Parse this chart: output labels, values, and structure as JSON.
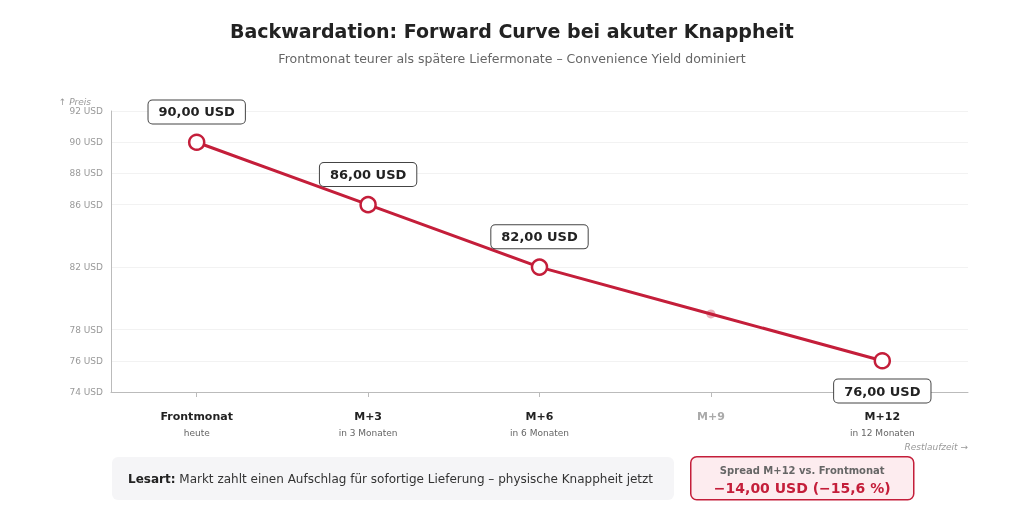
{
  "chart_data": {
    "type": "line",
    "title": "Backwardation: Forward Curve bei akuter Knappheit",
    "subtitle": "Frontmonat teurer als spätere Liefermonate – Convenience Yield dominiert",
    "xlabel": "Restlaufzeit →",
    "ylabel": "↑ Preis",
    "categories": [
      "Frontmonat\nheute",
      "M+3\nin 3 Monaten",
      "M+6\nin 6 Monaten",
      "M+9",
      "M+12\nin 12 Monaten"
    ],
    "series": [
      {
        "color": "#c41e3a",
        "values": [
          90,
          86,
          82,
          79,
          76
        ],
        "value_labels": [
          "90,00 USD",
          "86,00 USD",
          "82,00 USD",
          null,
          "76,00 USD"
        ]
      }
    ],
    "ylim": [
      74,
      92
    ],
    "yticks": [
      {
        "value": 74,
        "label": "74 USD"
      },
      {
        "value": 76,
        "label": "76 USD"
      },
      {
        "value": 78,
        "label": "78 USD"
      },
      {
        "value": 82,
        "label": "82 USD"
      },
      {
        "value": 86,
        "label": "86 USD"
      },
      {
        "value": 88,
        "label": "88 USD"
      },
      {
        "value": 90,
        "label": "90 USD"
      },
      {
        "value": 92,
        "label": "92 USD"
      }
    ],
    "grid": "y",
    "marker": "circle",
    "line_style": "solid",
    "annotations": [
      "Lesart: Markt zahlt einen Aufschlag für sofortige Lieferung – physische Knappheit jetzt",
      "Spread M+12 vs. Frontmonat",
      "−14,00 USD (−15,6 %)"
    ]
  }
}
